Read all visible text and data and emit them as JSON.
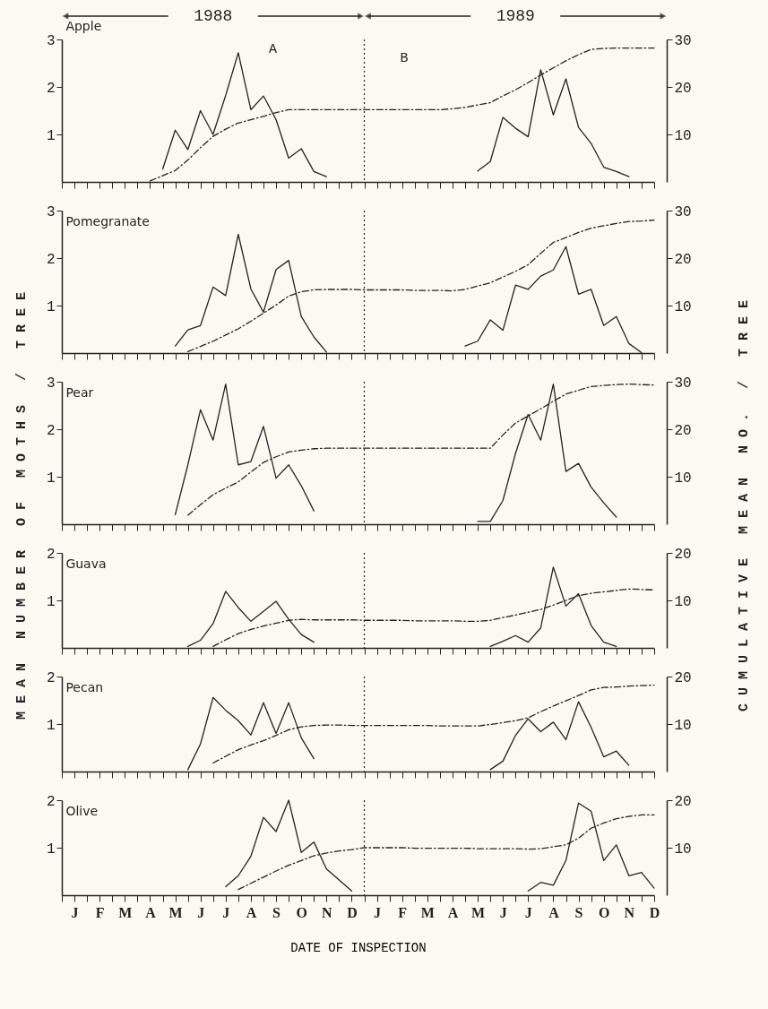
{
  "chart_data": [
    {
      "type": "line",
      "title": "Apple",
      "annotations": [
        "1988",
        "1989",
        "A",
        "B"
      ],
      "tick_labels": "y",
      "ylim": [
        0,
        3
      ],
      "yticks": [
        1,
        2,
        3
      ],
      "y2lim": [
        0,
        30
      ],
      "y2ticks": [
        10,
        20,
        30
      ],
      "categories": [
        null,
        null,
        null,
        null,
        null,
        null,
        null,
        null,
        null,
        null,
        null,
        null,
        null,
        null,
        null,
        null,
        null,
        null,
        null,
        null,
        null,
        null,
        null,
        null,
        null,
        null,
        null,
        null,
        null,
        null,
        null,
        null,
        null,
        null,
        null,
        null,
        null,
        null,
        null,
        null,
        null,
        null,
        null,
        null,
        null,
        null,
        null,
        null
      ],
      "series": [
        {
          "color": "#222222",
          "line_style": "solid",
          "values": [
            null,
            null,
            null,
            null,
            null,
            null,
            null,
            null,
            0.27,
            1.09,
            0.68,
            1.5,
            1.0,
            1.82,
            2.72,
            1.52,
            1.81,
            1.31,
            0.5,
            0.7,
            0.22,
            0.11,
            null,
            null,
            null,
            null,
            null,
            null,
            null,
            null,
            null,
            null,
            null,
            0.23,
            0.43,
            1.36,
            1.13,
            0.95,
            2.36,
            1.41,
            2.17,
            1.15,
            0.81,
            0.31,
            0.22,
            0.11,
            null,
            null
          ]
        },
        {
          "color": "#222222",
          "line_style": "dashed",
          "axis": "y2",
          "values": [
            null,
            null,
            null,
            null,
            null,
            null,
            null,
            0.2,
            1.3,
            2.4,
            4.6,
            7.2,
            9.6,
            11.1,
            12.4,
            13.1,
            13.8,
            14.6,
            15.2,
            15.2,
            15.2,
            15.2,
            15.2,
            15.2,
            15.2,
            15.2,
            15.2,
            15.2,
            15.2,
            15.2,
            15.2,
            15.4,
            15.7,
            16.2,
            16.7,
            18.1,
            19.4,
            20.9,
            22.5,
            24.0,
            25.5,
            26.8,
            27.9,
            28.1,
            28.2,
            28.2,
            28.2,
            28.2
          ]
        }
      ]
    },
    {
      "type": "line",
      "title": "Pomegranate",
      "tick_labels": "y",
      "ylim": [
        0,
        3
      ],
      "yticks": [
        1,
        2,
        3
      ],
      "y2lim": [
        0,
        30
      ],
      "y2ticks": [
        10,
        20,
        30
      ],
      "categories": [
        null,
        null,
        null,
        null,
        null,
        null,
        null,
        null,
        null,
        null,
        null,
        null,
        null,
        null,
        null,
        null,
        null,
        null,
        null,
        null,
        null,
        null,
        null,
        null,
        null,
        null,
        null,
        null,
        null,
        null,
        null,
        null,
        null,
        null,
        null,
        null,
        null,
        null,
        null,
        null,
        null,
        null,
        null,
        null,
        null,
        null,
        null,
        null
      ],
      "series": [
        {
          "color": "#222222",
          "line_style": "solid",
          "values": [
            null,
            null,
            null,
            null,
            null,
            null,
            null,
            null,
            null,
            0.15,
            0.49,
            0.58,
            1.39,
            1.21,
            2.5,
            1.35,
            0.86,
            1.76,
            1.95,
            0.77,
            0.34,
            0.02,
            null,
            null,
            null,
            null,
            null,
            null,
            null,
            null,
            null,
            null,
            0.15,
            0.25,
            0.7,
            0.48,
            1.43,
            1.34,
            1.62,
            1.75,
            2.24,
            1.24,
            1.34,
            0.58,
            0.77,
            0.2,
            0.01,
            null
          ]
        },
        {
          "color": "#222222",
          "line_style": "dashed",
          "axis": "y2",
          "values": [
            null,
            null,
            null,
            null,
            null,
            null,
            null,
            null,
            null,
            null,
            0.3,
            1.4,
            2.5,
            3.8,
            5.1,
            6.7,
            8.4,
            10.1,
            12.0,
            12.9,
            13.3,
            13.4,
            13.4,
            13.4,
            13.3,
            13.3,
            13.3,
            13.3,
            13.2,
            13.2,
            13.2,
            13.1,
            13.4,
            14.1,
            14.8,
            16.0,
            17.2,
            18.6,
            21.0,
            23.3,
            24.3,
            25.4,
            26.3,
            26.8,
            27.3,
            27.7,
            27.8,
            28.0
          ]
        }
      ]
    },
    {
      "type": "line",
      "title": "Pear",
      "ylabel": "MEAN NUMBER OF MOTHS / TREE",
      "y2label": "CUMULATIVE MEAN NO. / TREE",
      "tick_labels": "y",
      "ylim": [
        0,
        3
      ],
      "yticks": [
        1,
        2,
        3
      ],
      "y2lim": [
        0,
        30
      ],
      "y2ticks": [
        10,
        20,
        30
      ],
      "categories": [
        null,
        null,
        null,
        null,
        null,
        null,
        null,
        null,
        null,
        null,
        null,
        null,
        null,
        null,
        null,
        null,
        null,
        null,
        null,
        null,
        null,
        null,
        null,
        null,
        null,
        null,
        null,
        null,
        null,
        null,
        null,
        null,
        null,
        null,
        null,
        null,
        null,
        null,
        null,
        null,
        null,
        null,
        null,
        null,
        null,
        null,
        null,
        null
      ],
      "series": [
        {
          "color": "#222222",
          "line_style": "solid",
          "values": [
            null,
            null,
            null,
            null,
            null,
            null,
            null,
            null,
            null,
            0.2,
            1.25,
            2.41,
            1.77,
            2.95,
            1.25,
            1.32,
            2.06,
            0.97,
            1.25,
            0.81,
            0.28,
            null,
            null,
            null,
            null,
            null,
            null,
            null,
            null,
            null,
            null,
            null,
            null,
            0.06,
            0.06,
            0.5,
            1.49,
            2.31,
            1.77,
            2.95,
            1.11,
            1.28,
            0.78,
            0.45,
            0.15,
            null,
            null,
            null
          ]
        },
        {
          "color": "#222222",
          "line_style": "dashed",
          "axis": "y2",
          "values": [
            null,
            null,
            null,
            null,
            null,
            null,
            null,
            null,
            null,
            null,
            1.9,
            4.1,
            6.2,
            7.6,
            8.9,
            11.0,
            13.0,
            14.2,
            15.2,
            15.6,
            15.9,
            16.0,
            16.0,
            16.0,
            16.0,
            16.0,
            16.0,
            16.0,
            16.0,
            16.0,
            16.0,
            16.0,
            16.0,
            16.0,
            16.0,
            18.8,
            21.3,
            22.8,
            24.3,
            25.9,
            27.4,
            28.2,
            29.0,
            29.2,
            29.4,
            29.5,
            29.4,
            29.3
          ]
        }
      ]
    },
    {
      "type": "line",
      "title": "Guava",
      "tick_labels": "y",
      "ylim": [
        0,
        2
      ],
      "yticks": [
        1,
        2
      ],
      "y2lim": [
        0,
        20
      ],
      "y2ticks": [
        10,
        20
      ],
      "categories": [
        null,
        null,
        null,
        null,
        null,
        null,
        null,
        null,
        null,
        null,
        null,
        null,
        null,
        null,
        null,
        null,
        null,
        null,
        null,
        null,
        null,
        null,
        null,
        null,
        null,
        null,
        null,
        null,
        null,
        null,
        null,
        null,
        null,
        null,
        null,
        null,
        null,
        null,
        null,
        null,
        null,
        null,
        null,
        null,
        null,
        null,
        null,
        null
      ],
      "series": [
        {
          "color": "#222222",
          "line_style": "solid",
          "values": [
            null,
            null,
            null,
            null,
            null,
            null,
            null,
            null,
            null,
            null,
            0.03,
            0.16,
            0.51,
            1.19,
            0.85,
            0.56,
            0.77,
            0.98,
            0.6,
            0.28,
            0.12,
            null,
            null,
            null,
            null,
            null,
            null,
            null,
            null,
            null,
            null,
            null,
            null,
            null,
            0.03,
            0.14,
            0.26,
            0.12,
            0.42,
            1.7,
            0.88,
            1.14,
            0.47,
            0.12,
            0.03,
            null,
            null,
            null
          ]
        },
        {
          "color": "#222222",
          "line_style": "dashed",
          "axis": "y2",
          "values": [
            null,
            null,
            null,
            null,
            null,
            null,
            null,
            null,
            null,
            null,
            null,
            null,
            0.3,
            1.7,
            3.0,
            3.9,
            4.6,
            5.2,
            5.8,
            6.0,
            5.9,
            5.9,
            5.9,
            5.9,
            5.8,
            5.8,
            5.8,
            5.8,
            5.7,
            5.7,
            5.7,
            5.7,
            5.6,
            5.6,
            5.8,
            6.4,
            6.9,
            7.5,
            8.1,
            9.0,
            10.0,
            11.0,
            11.5,
            11.8,
            12.1,
            12.4,
            12.3,
            12.2
          ]
        }
      ]
    },
    {
      "type": "line",
      "title": "Pecan",
      "tick_labels": "y",
      "ylim": [
        0,
        2
      ],
      "yticks": [
        1,
        2
      ],
      "y2lim": [
        0,
        20
      ],
      "y2ticks": [
        10,
        20
      ],
      "categories": [
        null,
        null,
        null,
        null,
        null,
        null,
        null,
        null,
        null,
        null,
        null,
        null,
        null,
        null,
        null,
        null,
        null,
        null,
        null,
        null,
        null,
        null,
        null,
        null,
        null,
        null,
        null,
        null,
        null,
        null,
        null,
        null,
        null,
        null,
        null,
        null,
        null,
        null,
        null,
        null,
        null,
        null,
        null,
        null,
        null,
        null,
        null,
        null
      ],
      "series": [
        {
          "color": "#222222",
          "line_style": "solid",
          "values": [
            null,
            null,
            null,
            null,
            null,
            null,
            null,
            null,
            null,
            null,
            0.04,
            0.58,
            1.56,
            1.29,
            1.07,
            0.77,
            1.45,
            0.8,
            1.45,
            0.71,
            0.27,
            null,
            null,
            null,
            null,
            null,
            null,
            null,
            null,
            null,
            null,
            null,
            null,
            null,
            0.04,
            0.22,
            0.76,
            1.11,
            0.84,
            1.04,
            0.67,
            1.47,
            0.93,
            0.31,
            0.43,
            0.13,
            null,
            null
          ]
        },
        {
          "color": "#222222",
          "line_style": "dashed",
          "axis": "y2",
          "values": [
            null,
            null,
            null,
            null,
            null,
            null,
            null,
            null,
            null,
            null,
            null,
            null,
            1.8,
            3.2,
            4.6,
            5.6,
            6.5,
            7.6,
            8.8,
            9.4,
            9.7,
            9.8,
            9.8,
            9.7,
            9.7,
            9.7,
            9.7,
            9.7,
            9.7,
            9.7,
            9.6,
            9.6,
            9.6,
            9.6,
            9.9,
            10.3,
            10.7,
            11.3,
            12.6,
            13.8,
            14.9,
            16.0,
            17.2,
            17.7,
            17.8,
            18.0,
            18.1,
            18.2
          ]
        }
      ]
    },
    {
      "type": "line",
      "title": "Olive",
      "xlabel": "DATE OF INSPECTION",
      "ylim": [
        0,
        2
      ],
      "yticks": [
        1,
        2
      ],
      "y2lim": [
        0,
        20
      ],
      "y2ticks": [
        10,
        20
      ],
      "categories": [
        null,
        "J",
        null,
        "F",
        null,
        "M",
        null,
        "A",
        null,
        "M",
        null,
        "J",
        null,
        "J",
        null,
        "A",
        null,
        "S",
        null,
        "O",
        null,
        "N",
        null,
        "D",
        null,
        "J",
        null,
        "F",
        null,
        "M",
        null,
        "A",
        null,
        "M",
        null,
        "J",
        null,
        "J",
        null,
        "A",
        null,
        "S",
        null,
        "O",
        null,
        "N",
        null,
        "D"
      ],
      "series": [
        {
          "color": "#222222",
          "line_style": "solid",
          "values": [
            null,
            null,
            null,
            null,
            null,
            null,
            null,
            null,
            null,
            null,
            null,
            null,
            null,
            0.18,
            0.41,
            0.82,
            1.64,
            1.34,
            2.0,
            0.9,
            1.12,
            0.55,
            0.32,
            0.09,
            null,
            null,
            null,
            null,
            null,
            null,
            null,
            null,
            null,
            null,
            null,
            null,
            null,
            0.09,
            0.27,
            0.21,
            0.73,
            1.94,
            1.77,
            0.73,
            1.06,
            0.41,
            0.48,
            0.15
          ]
        },
        {
          "color": "#222222",
          "line_style": "dashed",
          "axis": "y2",
          "values": [
            null,
            null,
            null,
            null,
            null,
            null,
            null,
            null,
            null,
            null,
            null,
            null,
            null,
            null,
            1.2,
            2.5,
            3.8,
            5.1,
            6.3,
            7.3,
            8.3,
            8.9,
            9.3,
            9.6,
            10.0,
            10.0,
            10.0,
            10.0,
            9.9,
            9.9,
            9.9,
            9.9,
            9.9,
            9.8,
            9.8,
            9.8,
            9.8,
            9.7,
            9.8,
            10.2,
            10.6,
            12.0,
            14.1,
            15.2,
            16.1,
            16.6,
            16.9,
            16.9
          ]
        }
      ]
    }
  ]
}
